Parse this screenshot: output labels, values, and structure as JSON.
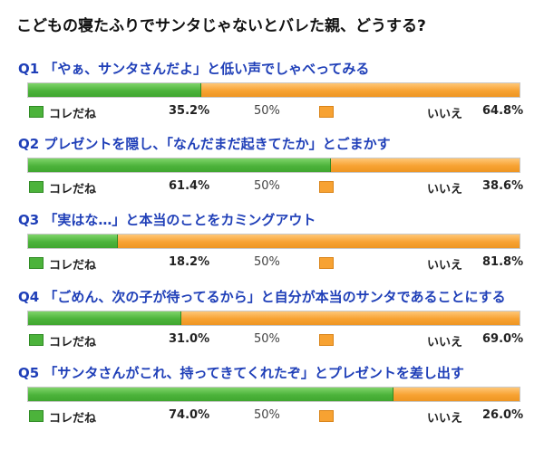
{
  "title": "こどもの寝たふりでサンタじゃないとバレた親、どうする?",
  "legend": {
    "yes": "コレだね",
    "no": "いいえ",
    "mid": "50%"
  },
  "colors": {
    "yes": "#4cb33b",
    "no": "#f7a232",
    "question": "#1f3fb8"
  },
  "questions": [
    {
      "label": "Q1 「やぁ、サンタさんだよ」と低い声でしゃべってみる",
      "yes_pct": "35.2%",
      "no_pct": "64.8%"
    },
    {
      "label": "Q2 プレゼントを隠し、「なんだまだ起きてたか」とごまかす",
      "yes_pct": "61.4%",
      "no_pct": "38.6%"
    },
    {
      "label": "Q3 「実はな…」と本当のことをカミングアウト",
      "yes_pct": "18.2%",
      "no_pct": "81.8%"
    },
    {
      "label": "Q4 「ごめん、次の子が待ってるから」と自分が本当のサンタであることにする",
      "yes_pct": "31.0%",
      "no_pct": "69.0%"
    },
    {
      "label": "Q5 「サンタさんがこれ、持ってきてくれたぞ」とプレゼントを差し出す",
      "yes_pct": "74.0%",
      "no_pct": "26.0%"
    }
  ],
  "chart_data": {
    "type": "bar",
    "stacked": true,
    "orientation": "horizontal",
    "title": "こどもの寝たふりでサンタじゃないとバレた親、どうする?",
    "categories": [
      "Q1 「やぁ、サンタさんだよ」と低い声でしゃべってみる",
      "Q2 プレゼントを隠し、「なんだまだ起きてたか」とごまかす",
      "Q3 「実はな…」と本当のことをカミングアウト",
      "Q4 「ごめん、次の子が待ってるから」と自分が本当のサンタであることにする",
      "Q5 「サンタさんがこれ、持ってきてくれたぞ」とプレゼントを差し出す"
    ],
    "series": [
      {
        "name": "コレだね",
        "values": [
          35.2,
          61.4,
          18.2,
          31.0,
          74.0
        ]
      },
      {
        "name": "いいえ",
        "values": [
          64.8,
          38.6,
          81.8,
          69.0,
          26.0
        ]
      }
    ],
    "xlim": [
      0,
      100
    ]
  }
}
